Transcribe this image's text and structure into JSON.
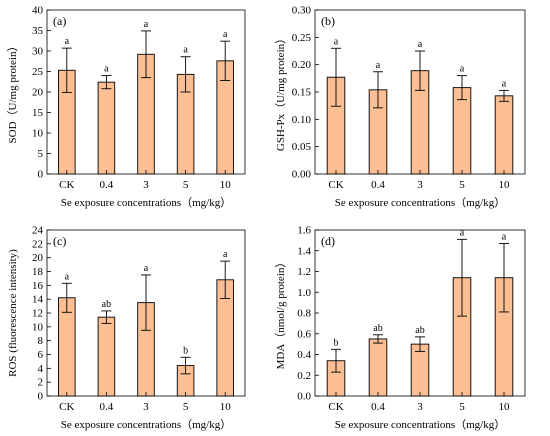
{
  "colors": {
    "bar_fill": "#fbbf93",
    "bar_stroke": "#000000"
  },
  "chart_data": [
    {
      "type": "bar",
      "panel_label": "(a)",
      "categories": [
        "CK",
        "0.4",
        "3",
        "5",
        "10"
      ],
      "values": [
        25.3,
        22.4,
        29.2,
        24.3,
        27.6
      ],
      "errors": [
        5.4,
        1.6,
        5.7,
        4.3,
        4.8
      ],
      "significance": [
        "a",
        "a",
        "a",
        "a",
        "a"
      ],
      "ylabel": "SOD（U/mg protein）",
      "xlabel": "Se exposure concentrations（mg/kg）",
      "ylim": [
        0,
        40
      ],
      "yticks": [
        0,
        5,
        10,
        15,
        20,
        25,
        30,
        35,
        40
      ],
      "ytick_labels": [
        "0",
        "5",
        "10",
        "15",
        "20",
        "25",
        "30",
        "35",
        "40"
      ]
    },
    {
      "type": "bar",
      "panel_label": "(b)",
      "categories": [
        "CK",
        "0.4",
        "3",
        "5",
        "10"
      ],
      "values": [
        0.177,
        0.154,
        0.189,
        0.158,
        0.143
      ],
      "errors": [
        0.053,
        0.033,
        0.036,
        0.022,
        0.01
      ],
      "significance": [
        "a",
        "a",
        "a",
        "a",
        "a"
      ],
      "ylabel": "GSH-Px（U/mg protein）",
      "xlabel": "Se exposure concentrations（mg/kg）",
      "ylim": [
        0,
        0.3
      ],
      "yticks": [
        0,
        0.05,
        0.1,
        0.15,
        0.2,
        0.25,
        0.3
      ],
      "ytick_labels": [
        "0.00",
        "0.05",
        "0.10",
        "0.15",
        "0.20",
        "0.25",
        "0.30"
      ]
    },
    {
      "type": "bar",
      "panel_label": "(c)",
      "categories": [
        "CK",
        "0.4",
        "3",
        "5",
        "10"
      ],
      "values": [
        14.2,
        11.4,
        13.5,
        4.4,
        16.8
      ],
      "errors": [
        2.1,
        0.9,
        4.0,
        1.2,
        2.7
      ],
      "significance": [
        "a",
        "ab",
        "a",
        "b",
        "a"
      ],
      "ylabel": "ROS (fluorescence intensity)",
      "xlabel": "Se exposure concentrations（mg/kg）",
      "ylim": [
        0,
        24
      ],
      "yticks": [
        0,
        2,
        4,
        6,
        8,
        10,
        12,
        14,
        16,
        18,
        20,
        22,
        24
      ],
      "ytick_labels": [
        "0",
        "2",
        "4",
        "6",
        "8",
        "10",
        "12",
        "14",
        "16",
        "18",
        "20",
        "22",
        "24"
      ]
    },
    {
      "type": "bar",
      "panel_label": "(d)",
      "categories": [
        "CK",
        "0.4",
        "3",
        "5",
        "10"
      ],
      "values": [
        0.34,
        0.55,
        0.5,
        1.14,
        1.14
      ],
      "errors": [
        0.11,
        0.04,
        0.07,
        0.37,
        0.33
      ],
      "significance": [
        "b",
        "ab",
        "ab",
        "a",
        "a"
      ],
      "ylabel": "MDA（nmol/g protein）",
      "xlabel": "Se exposure concentrations（mg/kg）",
      "ylim": [
        0,
        1.6
      ],
      "yticks": [
        0,
        0.2,
        0.4,
        0.6,
        0.8,
        1.0,
        1.2,
        1.4,
        1.6
      ],
      "ytick_labels": [
        "0.0",
        "0.2",
        "0.4",
        "0.6",
        "0.8",
        "1.0",
        "1.2",
        "1.4",
        "1.6"
      ]
    }
  ]
}
